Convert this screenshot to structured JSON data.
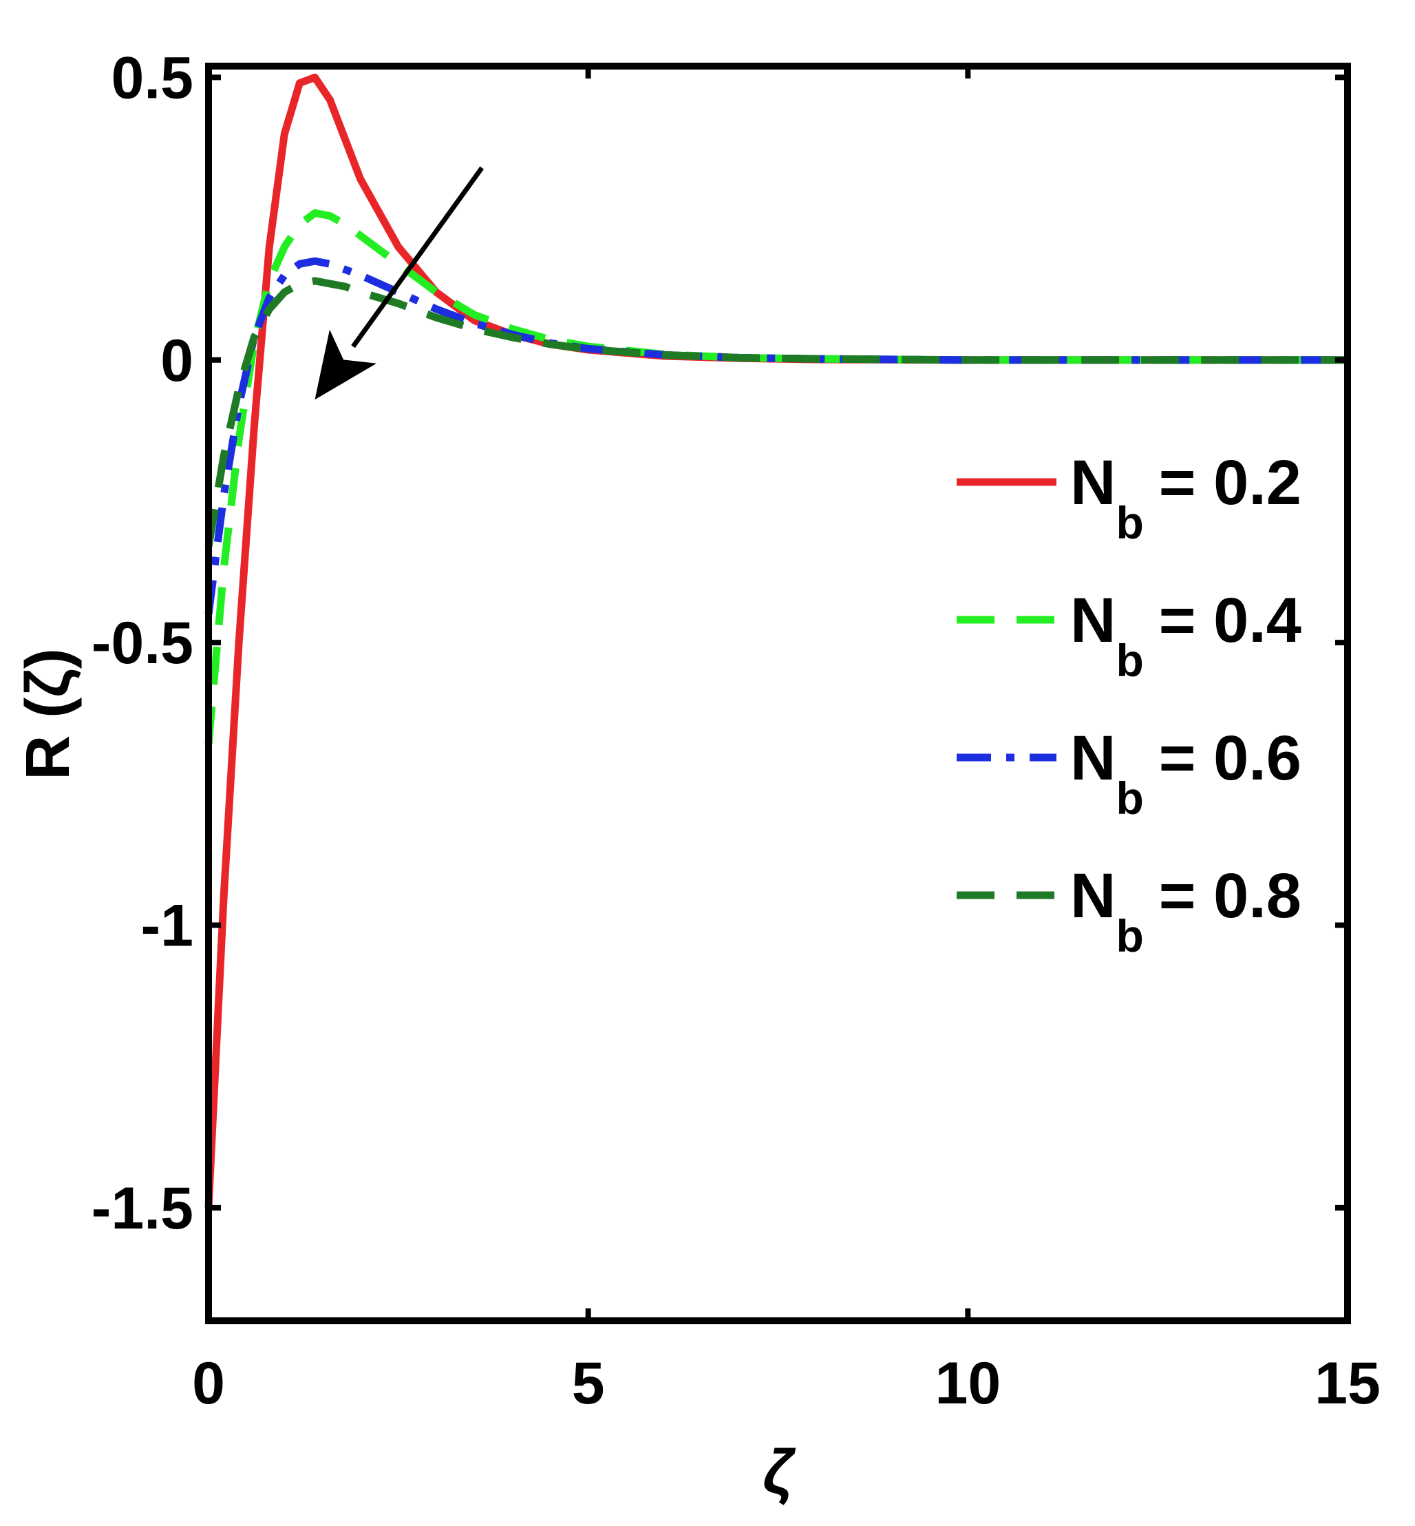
{
  "chart_data": {
    "type": "line",
    "title": "",
    "xlabel": "ζ",
    "ylabel": "R (ζ)",
    "xlim": [
      0,
      15
    ],
    "ylim": [
      -1.7,
      0.52
    ],
    "xticks": [
      0,
      5,
      10,
      15
    ],
    "xtick_labels": [
      "0",
      "5",
      "10",
      "15"
    ],
    "yticks": [
      0.5,
      0,
      -0.5,
      -1,
      -1.5
    ],
    "ytick_labels": [
      "0.5",
      "0",
      "-0.5",
      "-1",
      "-1.5"
    ],
    "grid": false,
    "legend_position": "right-middle",
    "series": [
      {
        "name": "N_b = 0.2",
        "legend_main": "N",
        "legend_sub": "b",
        "legend_value": "= 0.2",
        "color": "#e8262a",
        "style": "solid",
        "x": [
          0,
          0.2,
          0.4,
          0.6,
          0.8,
          1.0,
          1.2,
          1.4,
          1.6,
          1.8,
          2.0,
          2.5,
          3.0,
          3.5,
          4.0,
          4.5,
          5.0,
          6.0,
          7.0,
          8.0,
          10.0,
          12.0,
          15.0
        ],
        "y": [
          -1.5,
          -0.95,
          -0.5,
          -0.12,
          0.2,
          0.4,
          0.49,
          0.5,
          0.46,
          0.39,
          0.32,
          0.2,
          0.12,
          0.07,
          0.045,
          0.028,
          0.018,
          0.007,
          0.003,
          0.001,
          0,
          0,
          0
        ]
      },
      {
        "name": "N_b = 0.4",
        "legend_main": "N",
        "legend_sub": "b",
        "legend_value": "= 0.4",
        "color": "#22ee22",
        "style": "dashed",
        "x": [
          0,
          0.2,
          0.4,
          0.6,
          0.8,
          1.0,
          1.2,
          1.4,
          1.6,
          1.8,
          2.0,
          2.5,
          3.0,
          3.5,
          4.0,
          4.5,
          5.0,
          6.0,
          7.0,
          8.0,
          10.0,
          12.0,
          15.0
        ],
        "y": [
          -0.68,
          -0.37,
          -0.14,
          0.03,
          0.14,
          0.2,
          0.24,
          0.26,
          0.255,
          0.24,
          0.22,
          0.17,
          0.12,
          0.08,
          0.055,
          0.036,
          0.024,
          0.01,
          0.004,
          0.002,
          0,
          0,
          0
        ]
      },
      {
        "name": "N_b = 0.6",
        "legend_main": "N",
        "legend_sub": "b",
        "legend_value": "= 0.6",
        "color": "#1c2ee0",
        "style": "dashdot",
        "x": [
          0,
          0.2,
          0.4,
          0.6,
          0.8,
          1.0,
          1.2,
          1.4,
          1.6,
          1.8,
          2.0,
          2.5,
          3.0,
          3.5,
          4.0,
          4.5,
          5.0,
          6.0,
          7.0,
          8.0,
          10.0,
          12.0,
          15.0
        ],
        "y": [
          -0.45,
          -0.24,
          -0.08,
          0.04,
          0.11,
          0.15,
          0.17,
          0.175,
          0.17,
          0.16,
          0.15,
          0.12,
          0.09,
          0.065,
          0.045,
          0.03,
          0.02,
          0.009,
          0.004,
          0.002,
          0,
          0,
          0
        ]
      },
      {
        "name": "N_b = 0.8",
        "legend_main": "N",
        "legend_sub": "b",
        "legend_value": "= 0.8",
        "color": "#1e7a24",
        "style": "dashed",
        "x": [
          0,
          0.2,
          0.4,
          0.6,
          0.8,
          1.0,
          1.2,
          1.4,
          1.6,
          1.8,
          2.0,
          2.5,
          3.0,
          3.5,
          4.0,
          4.5,
          5.0,
          6.0,
          7.0,
          8.0,
          10.0,
          12.0,
          15.0
        ],
        "y": [
          -0.33,
          -0.17,
          -0.05,
          0.04,
          0.09,
          0.12,
          0.135,
          0.14,
          0.135,
          0.13,
          0.12,
          0.1,
          0.075,
          0.055,
          0.04,
          0.028,
          0.019,
          0.009,
          0.004,
          0.002,
          0,
          0,
          0
        ]
      }
    ],
    "annotations": [
      {
        "type": "arrow",
        "from": [
          3.6,
          0.34
        ],
        "to": [
          1.4,
          -0.07
        ],
        "color": "#000000"
      }
    ]
  }
}
